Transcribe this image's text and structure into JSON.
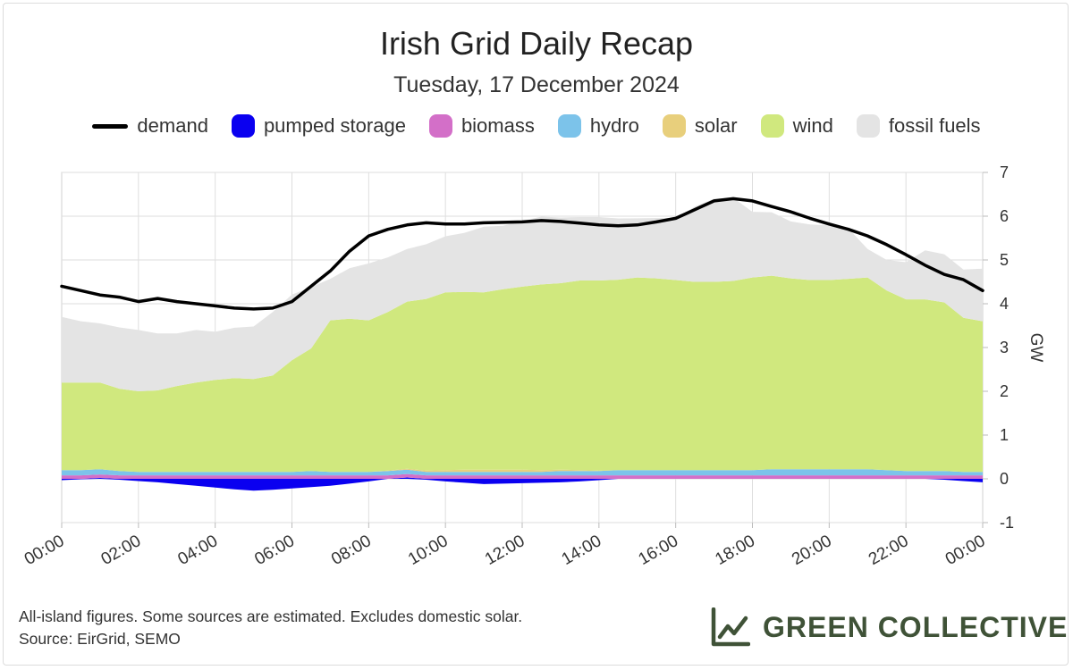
{
  "title": "Irish Grid Daily Recap",
  "subtitle": "Tuesday, 17 December 2024",
  "legend": [
    {
      "label": "demand",
      "color": "#000000",
      "kind": "line",
      "icon": "demand-line-icon"
    },
    {
      "label": "pumped storage",
      "color": "#0a00f0",
      "kind": "area",
      "icon": "pumped-storage-swatch-icon"
    },
    {
      "label": "biomass",
      "color": "#d36fc8",
      "kind": "area",
      "icon": "biomass-swatch-icon"
    },
    {
      "label": "hydro",
      "color": "#7cc3ea",
      "kind": "area",
      "icon": "hydro-swatch-icon"
    },
    {
      "label": "solar",
      "color": "#e8cf7c",
      "kind": "area",
      "icon": "solar-swatch-icon"
    },
    {
      "label": "wind",
      "color": "#d0e87e",
      "kind": "area",
      "icon": "wind-swatch-icon"
    },
    {
      "label": "fossil fuels",
      "color": "#e4e4e4",
      "kind": "area",
      "icon": "fossil-fuels-swatch-icon"
    }
  ],
  "footer": {
    "line1": "All-island figures. Some sources are estimated. Excludes domestic solar.",
    "line2": "Source: EirGrid, SEMO"
  },
  "brand": {
    "name": "GREEN COLLECTIVE",
    "color": "#3f5237",
    "icon": "rising-chart-logo-icon"
  },
  "chart_data": {
    "type": "area",
    "title": "Irish Grid Daily Recap",
    "subtitle": "Tuesday, 17 December 2024",
    "ylabel": "GW",
    "xlabel": "",
    "ylim": [
      -1,
      7
    ],
    "yticks": [
      "-1",
      "0",
      "1",
      "2",
      "3",
      "4",
      "5",
      "6",
      "7"
    ],
    "xticks": [
      "00:00",
      "02:00",
      "04:00",
      "06:00",
      "08:00",
      "10:00",
      "12:00",
      "14:00",
      "16:00",
      "18:00",
      "20:00",
      "22:00",
      "00:00"
    ],
    "grid": true,
    "x_hours": [
      0,
      0.5,
      1,
      1.5,
      2,
      2.5,
      3,
      3.5,
      4,
      4.5,
      5,
      5.5,
      6,
      6.5,
      7,
      7.5,
      8,
      8.5,
      9,
      9.5,
      10,
      10.5,
      11,
      11.5,
      12,
      12.5,
      13,
      13.5,
      14,
      14.5,
      15,
      15.5,
      16,
      16.5,
      17,
      17.5,
      18,
      18.5,
      19,
      19.5,
      20,
      20.5,
      21,
      21.5,
      22,
      22.5,
      23,
      23.5,
      24
    ],
    "series": [
      {
        "name": "pumped storage",
        "values": [
          -0.03,
          -0.01,
          0.02,
          -0.02,
          -0.05,
          -0.08,
          -0.12,
          -0.16,
          -0.2,
          -0.24,
          -0.27,
          -0.25,
          -0.22,
          -0.19,
          -0.16,
          -0.11,
          -0.06,
          0,
          0.03,
          -0.02,
          -0.06,
          -0.09,
          -0.12,
          -0.11,
          -0.1,
          -0.09,
          -0.08,
          -0.06,
          -0.03,
          0,
          0,
          0,
          0,
          0,
          0,
          0,
          0,
          0,
          0,
          0,
          0,
          0,
          0,
          0,
          0,
          0,
          -0.02,
          -0.05,
          -0.08
        ]
      },
      {
        "name": "biomass",
        "values": [
          0.08,
          0.08,
          0.08,
          0.08,
          0.08,
          0.08,
          0.08,
          0.08,
          0.08,
          0.08,
          0.08,
          0.08,
          0.08,
          0.08,
          0.08,
          0.08,
          0.08,
          0.08,
          0.08,
          0.08,
          0.08,
          0.08,
          0.08,
          0.08,
          0.08,
          0.08,
          0.08,
          0.08,
          0.08,
          0.08,
          0.08,
          0.08,
          0.08,
          0.08,
          0.08,
          0.08,
          0.08,
          0.08,
          0.08,
          0.08,
          0.08,
          0.08,
          0.08,
          0.08,
          0.08,
          0.08,
          0.08,
          0.08,
          0.08
        ]
      },
      {
        "name": "hydro",
        "values": [
          0.12,
          0.12,
          0.12,
          0.1,
          0.08,
          0.08,
          0.08,
          0.08,
          0.08,
          0.08,
          0.08,
          0.08,
          0.08,
          0.1,
          0.08,
          0.08,
          0.08,
          0.1,
          0.1,
          0.08,
          0.08,
          0.08,
          0.08,
          0.08,
          0.08,
          0.08,
          0.1,
          0.1,
          0.1,
          0.12,
          0.12,
          0.12,
          0.12,
          0.12,
          0.12,
          0.12,
          0.12,
          0.14,
          0.14,
          0.14,
          0.14,
          0.14,
          0.14,
          0.12,
          0.1,
          0.1,
          0.1,
          0.08,
          0.08
        ]
      },
      {
        "name": "solar",
        "values": [
          0,
          0,
          0,
          0,
          0,
          0,
          0,
          0,
          0,
          0,
          0,
          0,
          0,
          0,
          0,
          0,
          0,
          0.01,
          0.02,
          0.03,
          0.04,
          0.05,
          0.05,
          0.05,
          0.05,
          0.04,
          0.03,
          0.02,
          0.01,
          0,
          0,
          0,
          0,
          0,
          0,
          0,
          0,
          0,
          0,
          0,
          0,
          0,
          0,
          0,
          0,
          0,
          0,
          0,
          0
        ]
      },
      {
        "name": "wind",
        "values": [
          2.0,
          2.0,
          1.98,
          1.88,
          1.84,
          1.86,
          1.96,
          2.04,
          2.1,
          2.14,
          2.12,
          2.2,
          2.55,
          2.8,
          3.46,
          3.5,
          3.46,
          3.62,
          3.82,
          3.92,
          4.06,
          4.06,
          4.05,
          4.12,
          4.18,
          4.24,
          4.26,
          4.33,
          4.34,
          4.35,
          4.4,
          4.38,
          4.34,
          4.3,
          4.3,
          4.32,
          4.4,
          4.42,
          4.36,
          4.32,
          4.32,
          4.35,
          4.38,
          4.1,
          3.92,
          3.92,
          3.85,
          3.52,
          3.44
        ]
      },
      {
        "name": "fossil fuels",
        "values": [
          1.5,
          1.4,
          1.35,
          1.4,
          1.4,
          1.3,
          1.2,
          1.2,
          1.1,
          1.15,
          1.2,
          1.45,
          1.5,
          1.4,
          0.95,
          1.15,
          1.3,
          1.25,
          1.2,
          1.25,
          1.28,
          1.35,
          1.5,
          1.45,
          1.5,
          1.55,
          1.5,
          1.45,
          1.45,
          1.4,
          1.35,
          1.38,
          1.42,
          1.72,
          1.9,
          1.9,
          1.5,
          1.45,
          1.3,
          1.27,
          1.25,
          1.15,
          0.65,
          0.7,
          0.85,
          1.12,
          1.1,
          1.1,
          1.2
        ]
      },
      {
        "name": "demand",
        "values": [
          4.4,
          4.3,
          4.2,
          4.15,
          4.05,
          4.12,
          4.05,
          4.0,
          3.95,
          3.9,
          3.88,
          3.9,
          4.05,
          4.4,
          4.75,
          5.2,
          5.55,
          5.7,
          5.8,
          5.85,
          5.82,
          5.82,
          5.85,
          5.86,
          5.87,
          5.9,
          5.88,
          5.84,
          5.8,
          5.78,
          5.8,
          5.87,
          5.95,
          6.15,
          6.35,
          6.4,
          6.35,
          6.22,
          6.1,
          5.95,
          5.82,
          5.7,
          5.55,
          5.35,
          5.12,
          4.88,
          4.67,
          4.55,
          4.3
        ]
      }
    ]
  }
}
